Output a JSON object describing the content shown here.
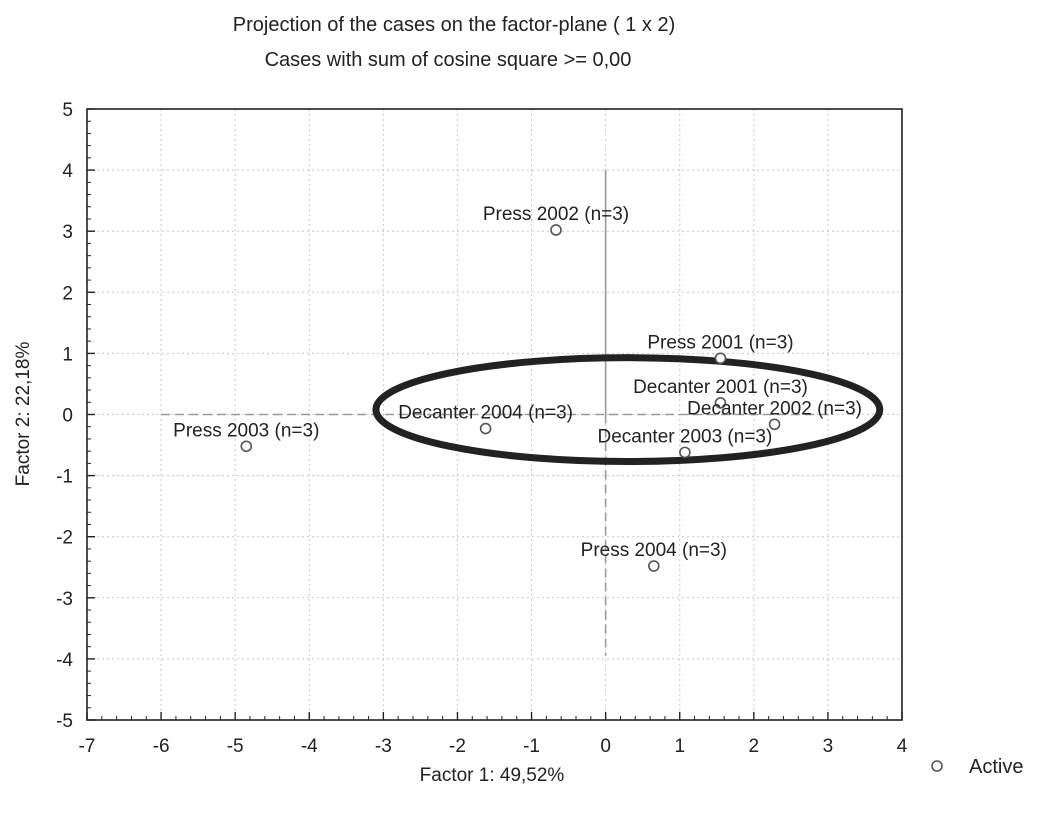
{
  "chart_data": {
    "type": "scatter",
    "title": "Projection of the cases on the factor-plane (  1 x   2)",
    "subtitle": "Cases with sum of cosine square >=  0,00",
    "xlabel": "Factor 1: 49,52%",
    "ylabel": "Factor 2: 22,18%",
    "xlim": [
      -7,
      4
    ],
    "ylim": [
      -5,
      5
    ],
    "xticks": [
      -7,
      -6,
      -5,
      -4,
      -3,
      -2,
      -1,
      0,
      1,
      2,
      3,
      4
    ],
    "yticks": [
      -5,
      -4,
      -3,
      -2,
      -1,
      0,
      1,
      2,
      3,
      4,
      5
    ],
    "grid": true,
    "legend_position": "right-bottom",
    "series": [
      {
        "name": "Active",
        "marker": "open-circle",
        "color": "#555555",
        "points": [
          {
            "label": "Press 2002 (n=3)",
            "x": -0.67,
            "y": 3.02
          },
          {
            "label": "Press 2001 (n=3)",
            "x": 1.55,
            "y": 0.92
          },
          {
            "label": "Decanter 2001 (n=3)",
            "x": 1.55,
            "y": 0.19
          },
          {
            "label": "Decanter  2002 (n=3)",
            "x": 2.28,
            "y": -0.16
          },
          {
            "label": "Decanter  2004 (n=3)",
            "x": -1.62,
            "y": -0.23
          },
          {
            "label": "Decanter  2003 (n=3)",
            "x": 1.07,
            "y": -0.62
          },
          {
            "label": "Press 2003 (n=3)",
            "x": -4.85,
            "y": -0.52
          },
          {
            "label": "Press 2004 (n=3)",
            "x": 0.65,
            "y": -2.48
          }
        ]
      }
    ],
    "reference_lines": {
      "vertical": {
        "x": 0,
        "y_from": -3.95,
        "y_to": 4.0
      },
      "horizontal": {
        "y": 0,
        "x_from": -6.0,
        "x_to": 3.0
      }
    },
    "annotations": [
      {
        "type": "ellipse",
        "cx": 0.3,
        "cy": 0.08,
        "rx": 3.4,
        "ry": 0.85,
        "color": "#222222"
      }
    ]
  }
}
